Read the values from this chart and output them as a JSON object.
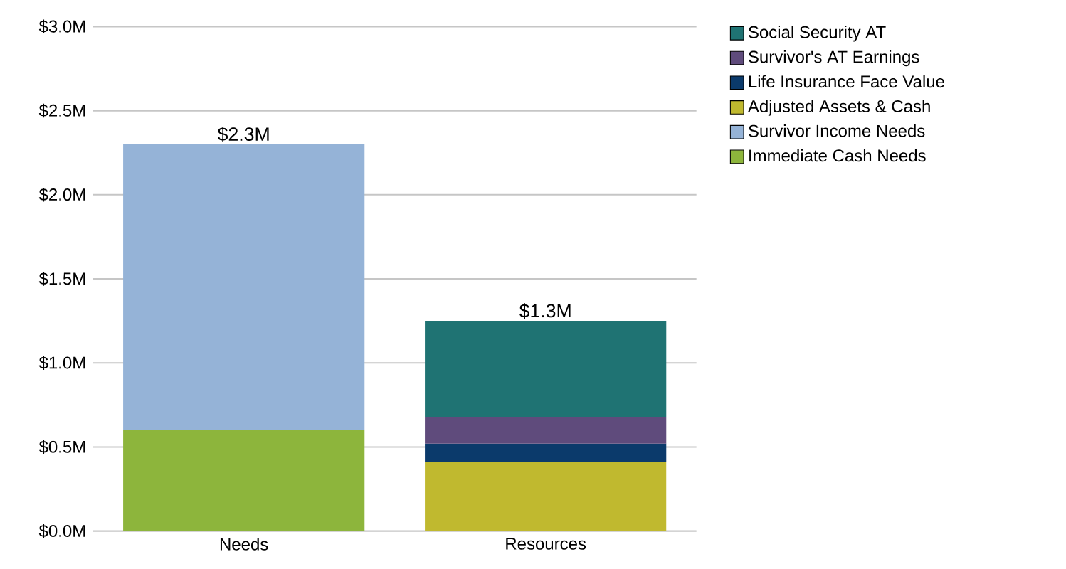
{
  "chart_data": {
    "type": "bar",
    "stacked": true,
    "categories": [
      "Needs",
      "Resources"
    ],
    "series": [
      {
        "name": "Immediate Cash Needs",
        "color": "#8db53c",
        "values": [
          0.6,
          null
        ]
      },
      {
        "name": "Survivor Income Needs",
        "color": "#95b3d7",
        "values": [
          1.7,
          null
        ]
      },
      {
        "name": "Adjusted Assets & Cash",
        "color": "#c0b92f",
        "values": [
          null,
          0.41
        ]
      },
      {
        "name": "Life Insurance Face Value",
        "color": "#0b3a6b",
        "values": [
          null,
          0.11
        ]
      },
      {
        "name": "Survivor's AT Earnings",
        "color": "#5f4b7c",
        "values": [
          null,
          0.16
        ]
      },
      {
        "name": "Social Security AT",
        "color": "#1f7373",
        "values": [
          null,
          0.57
        ]
      }
    ],
    "totals": [
      "$2.3M",
      "$1.3M"
    ],
    "ylim": [
      0,
      3
    ],
    "yticks": [
      {
        "value": 0,
        "label": "$0.0M"
      },
      {
        "value": 0.5,
        "label": "$0.5M"
      },
      {
        "value": 1,
        "label": "$1.0M"
      },
      {
        "value": 1.5,
        "label": "$1.5M"
      },
      {
        "value": 2,
        "label": "$2.0M"
      },
      {
        "value": 2.5,
        "label": "$2.5M"
      },
      {
        "value": 3,
        "label": "$3.0M"
      }
    ],
    "grid": "y",
    "legend": "right"
  }
}
